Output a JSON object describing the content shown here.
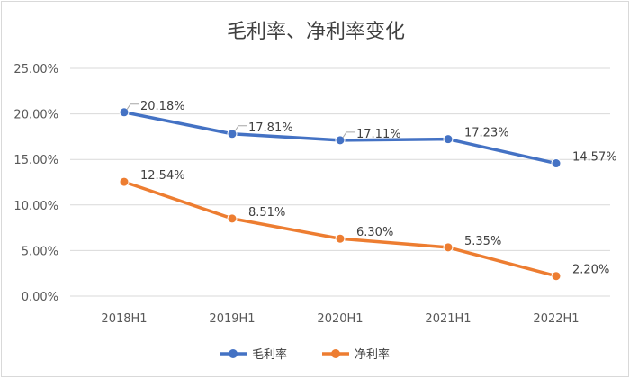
{
  "chart_data": {
    "type": "line",
    "title": "毛利率、净利率变化",
    "xlabel": "",
    "ylabel": "",
    "categories": [
      "2018H1",
      "2019H1",
      "2020H1",
      "2021H1",
      "2022H1"
    ],
    "ylim": [
      0,
      25
    ],
    "yticks": [
      "0.00%",
      "5.00%",
      "10.00%",
      "15.00%",
      "20.00%",
      "25.00%"
    ],
    "grid": true,
    "legend_position": "bottom",
    "series": [
      {
        "name": "毛利率",
        "color": "#4472c4",
        "values": [
          20.18,
          17.81,
          17.11,
          17.23,
          14.57
        ],
        "labels": [
          "20.18%",
          "17.81%",
          "17.11%",
          "17.23%",
          "14.57%"
        ]
      },
      {
        "name": "净利率",
        "color": "#ed7d31",
        "values": [
          12.54,
          8.51,
          6.3,
          5.35,
          2.2
        ],
        "labels": [
          "12.54%",
          "8.51%",
          "6.30%",
          "5.35%",
          "2.20%"
        ]
      }
    ]
  }
}
